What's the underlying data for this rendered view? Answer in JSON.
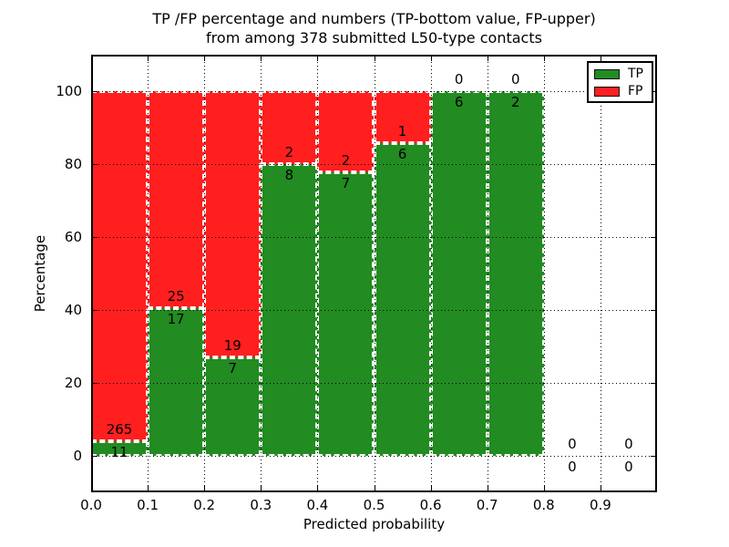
{
  "chart_data": {
    "type": "bar",
    "stacked": true,
    "bar_mode": "percent_stacked_100",
    "title_line1": "TP /FP percentage and numbers (TP-bottom value, FP-upper)",
    "title_line2": "from among 378 submitted L50-type contacts",
    "xlabel": "Predicted probability",
    "ylabel": "Percentage",
    "xlim": [
      0.0,
      1.0
    ],
    "ylim": [
      -10,
      110
    ],
    "xtick_values": [
      0.0,
      0.1,
      0.2,
      0.3,
      0.4,
      0.5,
      0.6,
      0.7,
      0.8,
      0.9
    ],
    "xtick_labels": [
      "0.0",
      "0.1",
      "0.2",
      "0.3",
      "0.4",
      "0.5",
      "0.6",
      "0.7",
      "0.8",
      "0.9"
    ],
    "ytick_values": [
      0,
      20,
      40,
      60,
      80,
      100
    ],
    "ytick_labels": [
      "0",
      "20",
      "40",
      "60",
      "80",
      "100"
    ],
    "grid": "dotted",
    "bin_width": 0.1,
    "bin_starts": [
      0.0,
      0.1,
      0.2,
      0.3,
      0.4,
      0.5,
      0.6,
      0.7,
      0.8,
      0.9
    ],
    "series": [
      {
        "name": "TP",
        "color": "#228b22",
        "counts": [
          11,
          17,
          7,
          8,
          7,
          6,
          6,
          2,
          0,
          0
        ]
      },
      {
        "name": "FP",
        "color": "#ff1f1f",
        "counts": [
          265,
          25,
          19,
          2,
          2,
          1,
          0,
          0,
          0,
          0
        ]
      }
    ],
    "legend": {
      "position": "upper-right",
      "entries": [
        {
          "label": "TP",
          "color": "#228b22"
        },
        {
          "label": "FP",
          "color": "#ff1f1f"
        }
      ]
    }
  }
}
